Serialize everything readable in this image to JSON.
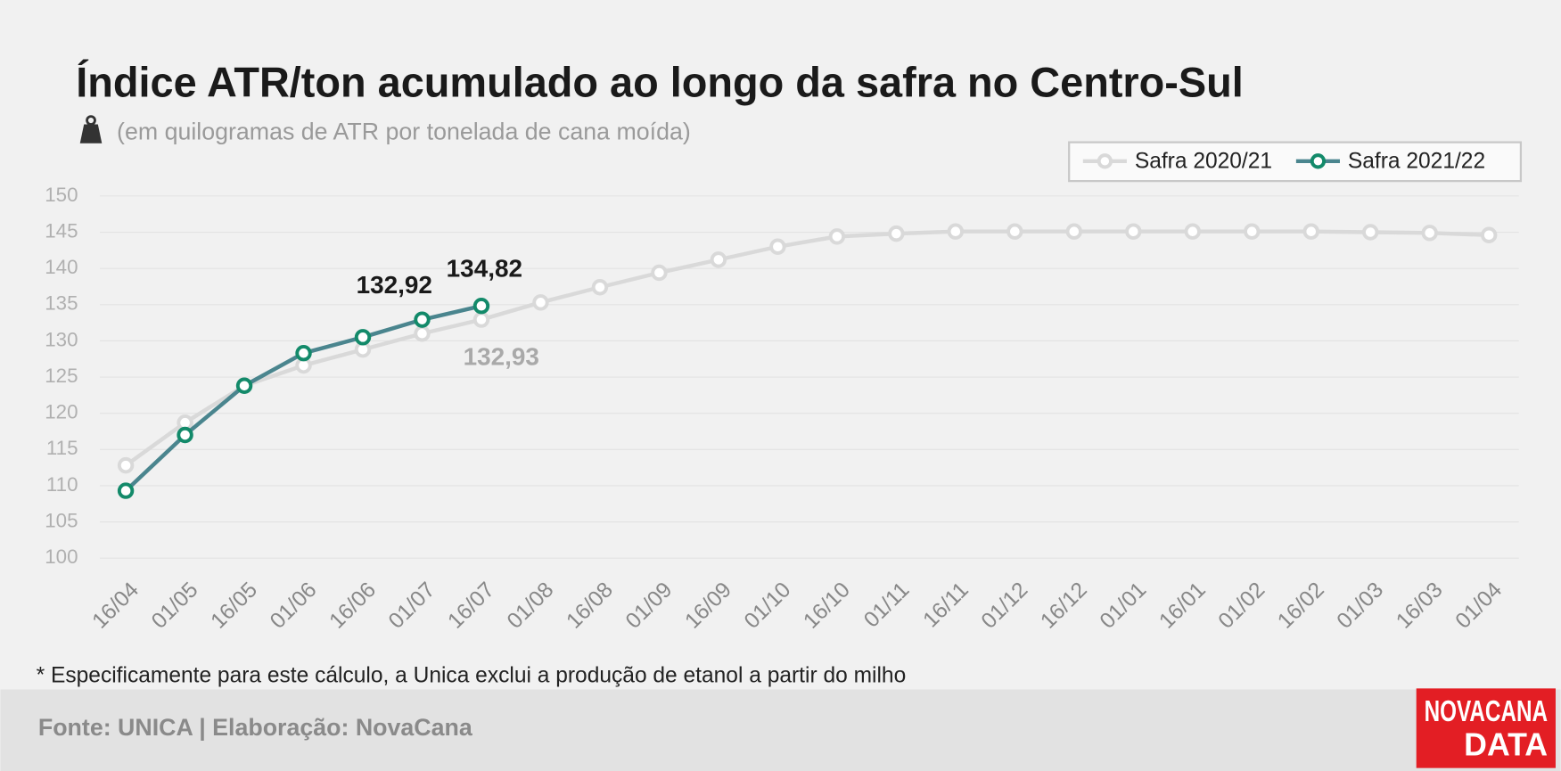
{
  "chart_data": {
    "type": "line",
    "title": "Índice ATR/ton acumulado ao longo da safra no Centro-Sul",
    "subtitle": "(em quilogramas de ATR por tonelada de cana moída)",
    "note": "* Especificamente para este cálculo, a Unica exclui a produção de etanol a partir do milho",
    "source": "Fonte: UNICA | Elaboração: NovaCana",
    "logo": [
      "NOVACANA",
      "DATA"
    ],
    "categories": [
      "16/04",
      "01/05",
      "16/05",
      "01/06",
      "16/06",
      "01/07",
      "16/07",
      "01/08",
      "16/08",
      "01/09",
      "16/09",
      "01/10",
      "16/10",
      "01/11",
      "16/11",
      "01/12",
      "16/12",
      "01/01",
      "16/01",
      "01/02",
      "16/02",
      "01/03",
      "16/03",
      "01/04"
    ],
    "series": [
      {
        "name": "Safra 2020/21",
        "color": "#d9d9d9",
        "values": [
          112.8,
          118.7,
          123.8,
          126.6,
          128.8,
          131.0,
          132.93,
          135.3,
          137.4,
          139.4,
          141.2,
          143.0,
          144.4,
          144.8,
          145.1,
          145.1,
          145.1,
          145.1,
          145.1,
          145.1,
          145.1,
          145.0,
          144.9,
          144.6
        ],
        "value_labels": [
          null,
          null,
          null,
          null,
          null,
          null,
          "132,93",
          null,
          null,
          null,
          null,
          null,
          null,
          null,
          null,
          null,
          null,
          null,
          null,
          null,
          null,
          null,
          null,
          null
        ]
      },
      {
        "name": "Safra 2021/22",
        "color": "#4a858e",
        "marker_color": "#138a6a",
        "values": [
          109.3,
          117.0,
          123.8,
          128.3,
          130.5,
          132.92,
          134.82,
          null,
          null,
          null,
          null,
          null,
          null,
          null,
          null,
          null,
          null,
          null,
          null,
          null,
          null,
          null,
          null,
          null
        ],
        "value_labels": [
          null,
          null,
          null,
          null,
          null,
          "132,92",
          "134,82",
          null,
          null,
          null,
          null,
          null,
          null,
          null,
          null,
          null,
          null,
          null,
          null,
          null,
          null,
          null,
          null,
          null
        ]
      }
    ],
    "ylim": [
      100,
      150
    ],
    "yticks": [
      100,
      105,
      110,
      115,
      120,
      125,
      130,
      135,
      140,
      145,
      150
    ],
    "grid": true,
    "legend": "top-right"
  }
}
